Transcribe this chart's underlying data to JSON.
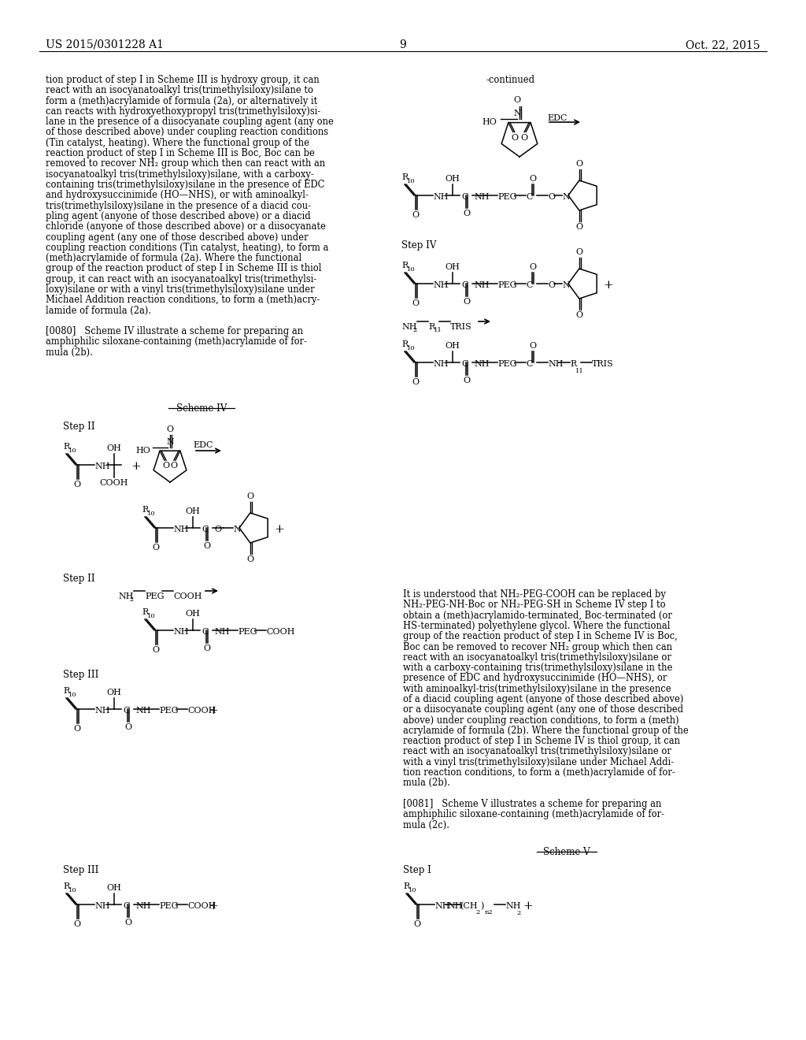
{
  "patent_number": "US 2015/0301228 A1",
  "page_number": "9",
  "patent_date": "Oct. 22, 2015",
  "left_col_lines": [
    "tion product of step I in Scheme III is hydroxy group, it can",
    "react with an isocyanatoalkyl tris(trimethylsiloxy)silane to",
    "form a (meth)acrylamide of formula (2a), or alternatively it",
    "can reacts with hydroxyethoxypropyl tris(trimethylsiloxy)si-",
    "lane in the presence of a diisocyanate coupling agent (any one",
    "of those described above) under coupling reaction conditions",
    "(Tin catalyst, heating). Where the functional group of the",
    "reaction product of step I in Scheme III is Boc, Boc can be",
    "removed to recover NH₂ group which then can react with an",
    "isocyanatoalkyl tris(trimethylsiloxy)silane, with a carboxy-",
    "containing tris(trimethylsiloxy)silane in the presence of EDC",
    "and hydroxysuccinimide (HO—NHS), or with aminoalkyl-",
    "tris(trimethylsiloxy)silane in the presence of a diacid cou-",
    "pling agent (anyone of those described above) or a diacid",
    "chloride (anyone of those described above) or a diisocyanate",
    "coupling agent (any one of those described above) under",
    "coupling reaction conditions (Tin catalyst, heating), to form a",
    "(meth)acrylamide of formula (2a). Where the functional",
    "group of the reaction product of step I in Scheme III is thiol",
    "group, it can react with an isocyanatoalkyl tris(trimethylsi-",
    "loxy)silane or with a vinyl tris(trimethylsiloxy)silane under",
    "Michael Addition reaction conditions, to form a (meth)acry-",
    "lamide of formula (2a).",
    "",
    "[0080]   Scheme IV illustrate a scheme for preparing an",
    "amphiphilic siloxane-containing (meth)acrylamide of for-",
    "mula (2b)."
  ],
  "right_body_lines": [
    "It is understood that NH₂-PEG-COOH can be replaced by",
    "NH₂-PEG-NH-Boc or NH₂-PEG-SH in Scheme IV step I to",
    "obtain a (meth)acrylamido-terminated, Boc-terminated (or",
    "HS-terminated) polyethylene glycol. Where the functional",
    "group of the reaction product of step I in Scheme IV is Boc,",
    "Boc can be removed to recover NH₂ group which then can",
    "react with an isocyanatoalkyl tris(trimethylsiloxy)silane or",
    "with a carboxy-containing tris(trimethylsiloxy)silane in the",
    "presence of EDC and hydroxysuccinimide (HO—NHS), or",
    "with aminoalkyl-tris(trimethylsiloxy)silane in the presence",
    "of a diacid coupling agent (anyone of those described above)",
    "or a diisocyanate coupling agent (any one of those described",
    "above) under coupling reaction conditions, to form a (meth)",
    "acrylamide of formula (2b). Where the functional group of the",
    "reaction product of step I in Scheme IV is thiol group, it can",
    "react with an isocyanatoalkyl tris(trimethylsiloxy)silane or",
    "with a vinyl tris(trimethylsiloxy)silane under Michael Addi-",
    "tion reaction conditions, to form a (meth)acrylamide of for-",
    "mula (2b).",
    "",
    "[0081]   Scheme V illustrates a scheme for preparing an",
    "amphiphilic siloxane-containing (meth)acrylamide of for-",
    "mula (2c)."
  ]
}
